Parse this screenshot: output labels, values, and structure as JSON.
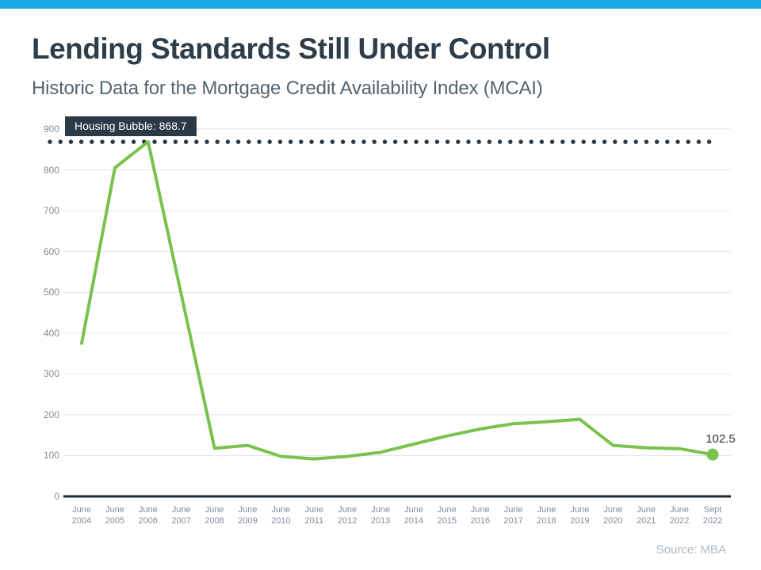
{
  "accent_color": "#18a8e8",
  "header": {
    "title": "Lending Standards Still Under Control",
    "subtitle": "Historic Data for the Mortgage Credit Availability Index (MCAI)"
  },
  "chart_data": {
    "type": "line",
    "title": "Lending Standards Still Under Control",
    "subtitle": "Historic Data for the Mortgage Credit Availability Index (MCAI)",
    "categories": [
      "June 2004",
      "June 2005",
      "June 2006",
      "June 2007",
      "June 2008",
      "June 2009",
      "June 2010",
      "June 2011",
      "June 2012",
      "June 2013",
      "June 2014",
      "June 2015",
      "June 2016",
      "June 2017",
      "June 2018",
      "June 2019",
      "June 2020",
      "June 2021",
      "June 2022",
      "Sept 2022"
    ],
    "values": [
      375,
      805,
      868.7,
      495,
      118,
      125,
      98,
      92,
      98,
      108,
      128,
      148,
      165,
      178,
      183,
      189,
      125,
      119,
      117,
      102.5
    ],
    "ylim": [
      0,
      900
    ],
    "ytick_labels": [
      "0",
      "100",
      "200",
      "300",
      "400",
      "500",
      "600",
      "700",
      "800",
      "900"
    ],
    "grid": true,
    "legend": "none",
    "line_color": "#79c24e",
    "grid_color": "#e4e5e7",
    "axis_color": "#1c2a35",
    "tick_text_color": "#7f8e9d",
    "threshold": {
      "value": 868.7,
      "label": "Housing Bubble: 868.7",
      "color": "#2c3947"
    },
    "end_label": "102.5",
    "source": "Source: MBA"
  }
}
